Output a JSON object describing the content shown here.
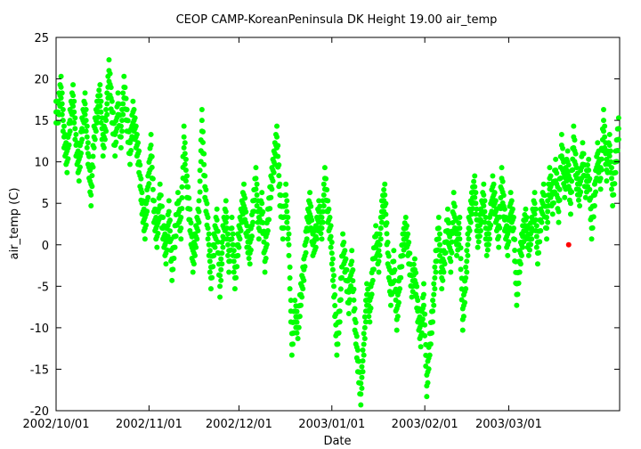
{
  "chart_data": {
    "type": "scatter",
    "title": "CEOP CAMP-KoreanPeninsula DK Height 19.00 air_temp",
    "xlabel": "Date",
    "ylabel": "air_temp (C)",
    "xlim": [
      "2002-10-01",
      "2003-04-07"
    ],
    "ylim": [
      -20,
      25
    ],
    "x_ticks": [
      "2002/10/01",
      "2002/11/01",
      "2002/12/01",
      "2003/01/01",
      "2003/02/01",
      "2003/03/01"
    ],
    "y_ticks": [
      25,
      20,
      15,
      10,
      5,
      0,
      -5,
      -10,
      -15,
      -20
    ],
    "grid": false,
    "series": [
      {
        "color": "#00ff00",
        "values": [
          [
            "2002-10-01",
            16
          ],
          [
            "2002-10-02",
            19
          ],
          [
            "2002-10-03",
            13
          ],
          [
            "2002-10-04",
            10
          ],
          [
            "2002-10-05",
            15
          ],
          [
            "2002-10-06",
            18
          ],
          [
            "2002-10-07",
            12
          ],
          [
            "2002-10-08",
            9
          ],
          [
            "2002-10-09",
            14
          ],
          [
            "2002-10-10",
            17
          ],
          [
            "2002-10-11",
            11
          ],
          [
            "2002-10-12",
            6
          ],
          [
            "2002-10-13",
            13
          ],
          [
            "2002-10-14",
            16
          ],
          [
            "2002-10-15",
            18
          ],
          [
            "2002-10-16",
            12
          ],
          [
            "2002-10-17",
            15
          ],
          [
            "2002-10-18",
            21
          ],
          [
            "2002-10-19",
            16
          ],
          [
            "2002-10-20",
            12
          ],
          [
            "2002-10-21",
            17
          ],
          [
            "2002-10-22",
            13
          ],
          [
            "2002-10-23",
            19
          ],
          [
            "2002-10-24",
            15
          ],
          [
            "2002-10-25",
            11
          ],
          [
            "2002-10-26",
            16
          ],
          [
            "2002-10-27",
            13
          ],
          [
            "2002-10-28",
            10
          ],
          [
            "2002-10-29",
            5
          ],
          [
            "2002-10-30",
            2
          ],
          [
            "2002-10-31",
            7
          ],
          [
            "2002-11-01",
            12
          ],
          [
            "2002-11-02",
            4
          ],
          [
            "2002-11-03",
            1
          ],
          [
            "2002-11-04",
            6
          ],
          [
            "2002-11-05",
            2
          ],
          [
            "2002-11-06",
            -1
          ],
          [
            "2002-11-07",
            4
          ],
          [
            "2002-11-08",
            -3
          ],
          [
            "2002-11-09",
            1
          ],
          [
            "2002-11-10",
            5
          ],
          [
            "2002-11-11",
            2
          ],
          [
            "2002-11-12",
            13
          ],
          [
            "2002-11-13",
            7
          ],
          [
            "2002-11-14",
            3
          ],
          [
            "2002-11-15",
            -2
          ],
          [
            "2002-11-16",
            1
          ],
          [
            "2002-11-17",
            4
          ],
          [
            "2002-11-18",
            15
          ],
          [
            "2002-11-19",
            7
          ],
          [
            "2002-11-20",
            2
          ],
          [
            "2002-11-21",
            -4
          ],
          [
            "2002-11-22",
            0
          ],
          [
            "2002-11-23",
            3
          ],
          [
            "2002-11-24",
            -5
          ],
          [
            "2002-11-25",
            1
          ],
          [
            "2002-11-26",
            4
          ],
          [
            "2002-11-27",
            -2
          ],
          [
            "2002-11-28",
            2
          ],
          [
            "2002-11-29",
            -4
          ],
          [
            "2002-11-30",
            0
          ],
          [
            "2002-12-01",
            3
          ],
          [
            "2002-12-02",
            6
          ],
          [
            "2002-12-03",
            1
          ],
          [
            "2002-12-04",
            -1
          ],
          [
            "2002-12-05",
            4
          ],
          [
            "2002-12-06",
            8
          ],
          [
            "2002-12-07",
            2
          ],
          [
            "2002-12-08",
            5
          ],
          [
            "2002-12-09",
            -2
          ],
          [
            "2002-12-10",
            3
          ],
          [
            "2002-12-11",
            7
          ],
          [
            "2002-12-12",
            10
          ],
          [
            "2002-12-13",
            13
          ],
          [
            "2002-12-14",
            6
          ],
          [
            "2002-12-15",
            2
          ],
          [
            "2002-12-16",
            6
          ],
          [
            "2002-12-17",
            0
          ],
          [
            "2002-12-18",
            -12
          ],
          [
            "2002-12-19",
            -8
          ],
          [
            "2002-12-20",
            -10
          ],
          [
            "2002-12-21",
            -6
          ],
          [
            "2002-12-22",
            -3
          ],
          [
            "2002-12-23",
            2
          ],
          [
            "2002-12-24",
            5
          ],
          [
            "2002-12-25",
            0
          ],
          [
            "2002-12-26",
            1
          ],
          [
            "2002-12-27",
            4
          ],
          [
            "2002-12-28",
            2
          ],
          [
            "2002-12-29",
            8
          ],
          [
            "2002-12-30",
            4
          ],
          [
            "2002-12-31",
            1
          ],
          [
            "2003-01-01",
            -5
          ],
          [
            "2003-01-02",
            -12
          ],
          [
            "2003-01-03",
            -8
          ],
          [
            "2003-01-04",
            0
          ],
          [
            "2003-01-05",
            -3
          ],
          [
            "2003-01-06",
            -7
          ],
          [
            "2003-01-07",
            -2
          ],
          [
            "2003-01-08",
            -9
          ],
          [
            "2003-01-09",
            -14
          ],
          [
            "2003-01-10",
            -18
          ],
          [
            "2003-01-11",
            -12
          ],
          [
            "2003-01-12",
            -6
          ],
          [
            "2003-01-13",
            -8
          ],
          [
            "2003-01-14",
            -3
          ],
          [
            "2003-01-15",
            1
          ],
          [
            "2003-01-16",
            -2
          ],
          [
            "2003-01-17",
            4
          ],
          [
            "2003-01-18",
            6
          ],
          [
            "2003-01-19",
            -1
          ],
          [
            "2003-01-20",
            -6
          ],
          [
            "2003-01-21",
            -2
          ],
          [
            "2003-01-22",
            -9
          ],
          [
            "2003-01-23",
            -4
          ],
          [
            "2003-01-24",
            0
          ],
          [
            "2003-01-25",
            2
          ],
          [
            "2003-01-26",
            -1
          ],
          [
            "2003-01-27",
            -5
          ],
          [
            "2003-01-28",
            -3
          ],
          [
            "2003-01-29",
            -8
          ],
          [
            "2003-01-30",
            -11
          ],
          [
            "2003-01-31",
            -6
          ],
          [
            "2003-02-01",
            -17
          ],
          [
            "2003-02-02",
            -12
          ],
          [
            "2003-02-03",
            -8
          ],
          [
            "2003-02-04",
            -2
          ],
          [
            "2003-02-05",
            2
          ],
          [
            "2003-02-06",
            -4
          ],
          [
            "2003-02-07",
            -1
          ],
          [
            "2003-02-08",
            3
          ],
          [
            "2003-02-09",
            -2
          ],
          [
            "2003-02-10",
            5
          ],
          [
            "2003-02-11",
            0
          ],
          [
            "2003-02-12",
            2
          ],
          [
            "2003-02-13",
            -9
          ],
          [
            "2003-02-14",
            -4
          ],
          [
            "2003-02-15",
            2
          ],
          [
            "2003-02-16",
            5
          ],
          [
            "2003-02-17",
            7
          ],
          [
            "2003-02-18",
            1
          ],
          [
            "2003-02-19",
            3
          ],
          [
            "2003-02-20",
            6
          ],
          [
            "2003-02-21",
            0
          ],
          [
            "2003-02-22",
            2
          ],
          [
            "2003-02-23",
            7
          ],
          [
            "2003-02-24",
            4
          ],
          [
            "2003-02-25",
            1
          ],
          [
            "2003-02-26",
            8
          ],
          [
            "2003-02-27",
            3
          ],
          [
            "2003-02-28",
            0
          ],
          [
            "2003-03-01",
            5
          ],
          [
            "2003-03-02",
            2
          ],
          [
            "2003-03-03",
            -6
          ],
          [
            "2003-03-04",
            -2
          ],
          [
            "2003-03-05",
            1
          ],
          [
            "2003-03-06",
            3
          ],
          [
            "2003-03-07",
            0
          ],
          [
            "2003-03-08",
            2
          ],
          [
            "2003-03-09",
            5
          ],
          [
            "2003-03-10",
            -1
          ],
          [
            "2003-03-11",
            3
          ],
          [
            "2003-03-12",
            6
          ],
          [
            "2003-03-13",
            2
          ],
          [
            "2003-03-14",
            8
          ],
          [
            "2003-03-15",
            5
          ],
          [
            "2003-03-16",
            9
          ],
          [
            "2003-03-17",
            4
          ],
          [
            "2003-03-18",
            12
          ],
          [
            "2003-03-19",
            7
          ],
          [
            "2003-03-20",
            10
          ],
          [
            "2003-03-21",
            5
          ],
          [
            "2003-03-22",
            13
          ],
          [
            "2003-03-23",
            8
          ],
          [
            "2003-03-24",
            6
          ],
          [
            "2003-03-25",
            11
          ],
          [
            "2003-03-26",
            7
          ],
          [
            "2003-03-27",
            9
          ],
          [
            "2003-03-28",
            2
          ],
          [
            "2003-03-29",
            6
          ],
          [
            "2003-03-30",
            11
          ],
          [
            "2003-03-31",
            8
          ],
          [
            "2003-04-01",
            15
          ],
          [
            "2003-04-02",
            9
          ],
          [
            "2003-04-03",
            12
          ],
          [
            "2003-04-04",
            6
          ],
          [
            "2003-04-05",
            10
          ],
          [
            "2003-04-06",
            14
          ]
        ]
      },
      {
        "color": "#ff0000",
        "values": [
          [
            "2003-03-21",
            0
          ]
        ]
      }
    ]
  }
}
